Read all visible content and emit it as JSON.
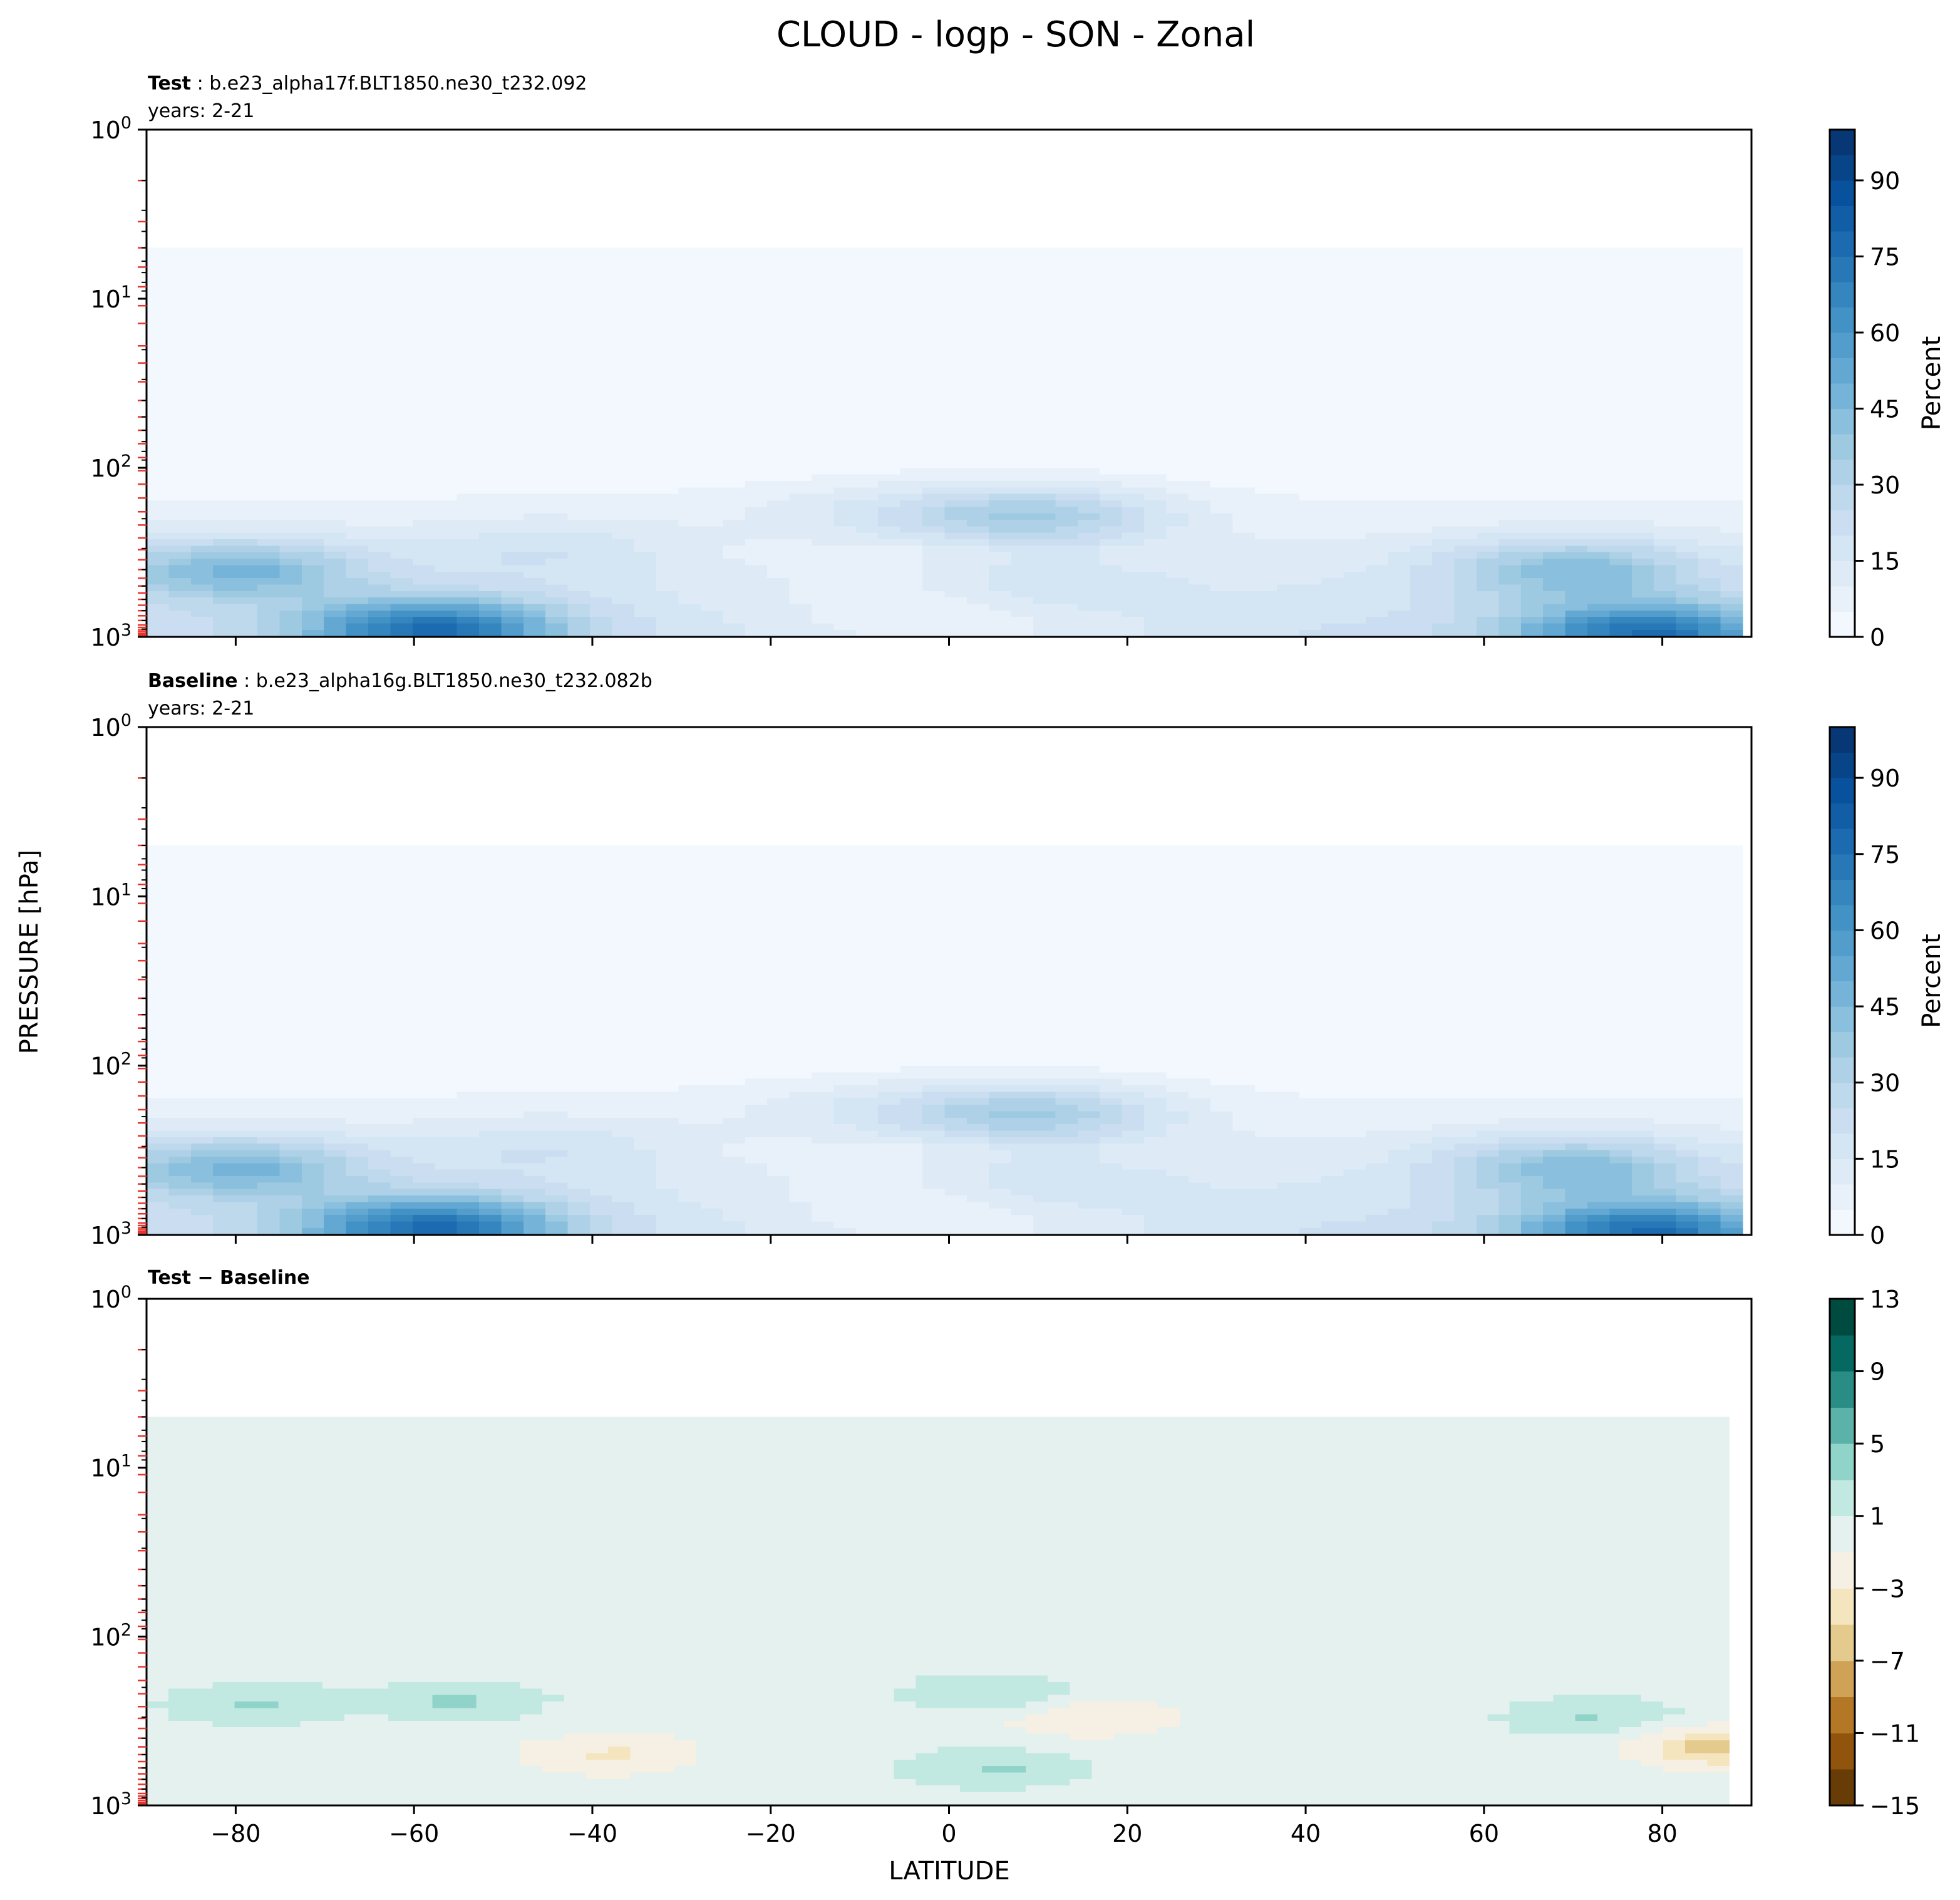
{
  "figure": {
    "title": "CLOUD - logp - SON - Zonal",
    "xlabel": "LATITUDE",
    "ylabel": "PRESSURE [hPa]"
  },
  "chart_data": [
    {
      "type": "heatmap",
      "panel": "test",
      "title_bold": "Test",
      "title_rest": " : b.e23_alpha17f.BLT1850.ne30_t232.092",
      "subtitle": "years: 2-21",
      "xlim": [
        -90,
        90
      ],
      "xticks": [
        -80,
        -60,
        -40,
        -20,
        0,
        20,
        40,
        60,
        80
      ],
      "ylim": [
        1000,
        1
      ],
      "yscale": "log",
      "yticks": [
        {
          "value": 1,
          "base": "10",
          "exp": "0"
        },
        {
          "value": 10,
          "base": "10",
          "exp": "1"
        },
        {
          "value": 100,
          "base": "10",
          "exp": "2"
        },
        {
          "value": 1000,
          "base": "10",
          "exp": "3"
        }
      ],
      "model_levels_hpa": [
        2,
        3.5,
        5,
        6.5,
        8.5,
        11,
        14,
        19,
        24,
        31,
        40,
        50,
        60,
        72,
        87,
        104,
        125,
        151,
        182,
        218,
        260,
        305,
        350,
        400,
        450,
        500,
        550,
        600,
        650,
        700,
        750,
        800,
        850,
        880,
        910,
        935,
        960,
        980,
        993
      ],
      "colorbar": {
        "label": "Percent",
        "min": 0,
        "max": 100,
        "step": 5,
        "ticks": [
          0,
          15,
          30,
          45,
          60,
          75,
          90
        ],
        "cmap": "Blues"
      },
      "data_top_hpa": 5,
      "features": [
        {
          "lat": -80,
          "p": 400,
          "value": 52
        },
        {
          "lat": -58,
          "p": 900,
          "value": 78
        },
        {
          "lat": -45,
          "p": 300,
          "value": 25
        },
        {
          "lat": 10,
          "p": 200,
          "value": 38
        },
        {
          "lat": 10,
          "p": 500,
          "value": 28
        },
        {
          "lat": 0,
          "p": 700,
          "value": 8
        },
        {
          "lat": 30,
          "p": 300,
          "value": 15
        },
        {
          "lat": 70,
          "p": 400,
          "value": 48
        },
        {
          "lat": 78,
          "p": 950,
          "value": 75
        }
      ]
    },
    {
      "type": "heatmap",
      "panel": "baseline",
      "title_bold": "Baseline",
      "title_rest": " : b.e23_alpha16g.BLT1850.ne30_t232.082b",
      "subtitle": "years: 2-21",
      "xlim": [
        -90,
        90
      ],
      "xticks": [
        -80,
        -60,
        -40,
        -20,
        0,
        20,
        40,
        60,
        80
      ],
      "ylim": [
        1000,
        1
      ],
      "yscale": "log",
      "yticks": [
        {
          "value": 1,
          "base": "10",
          "exp": "0"
        },
        {
          "value": 10,
          "base": "10",
          "exp": "1"
        },
        {
          "value": 100,
          "base": "10",
          "exp": "2"
        },
        {
          "value": 1000,
          "base": "10",
          "exp": "3"
        }
      ],
      "model_levels_hpa": [
        2,
        3.5,
        5,
        6.5,
        8.5,
        11,
        14,
        19,
        24,
        31,
        40,
        50,
        60,
        72,
        87,
        104,
        125,
        151,
        182,
        218,
        260,
        305,
        350,
        400,
        450,
        500,
        550,
        600,
        650,
        700,
        750,
        800,
        850,
        880,
        910,
        935,
        960,
        980,
        993
      ],
      "colorbar": {
        "label": "Percent",
        "min": 0,
        "max": 100,
        "step": 5,
        "ticks": [
          0,
          15,
          30,
          45,
          60,
          75,
          90
        ],
        "cmap": "Blues"
      },
      "data_top_hpa": 5,
      "features": [
        {
          "lat": -80,
          "p": 400,
          "value": 52
        },
        {
          "lat": -58,
          "p": 900,
          "value": 78
        },
        {
          "lat": -45,
          "p": 300,
          "value": 25
        },
        {
          "lat": 10,
          "p": 200,
          "value": 38
        },
        {
          "lat": 10,
          "p": 500,
          "value": 28
        },
        {
          "lat": 0,
          "p": 700,
          "value": 8
        },
        {
          "lat": 30,
          "p": 300,
          "value": 15
        },
        {
          "lat": 70,
          "p": 400,
          "value": 48
        },
        {
          "lat": 78,
          "p": 950,
          "value": 75
        }
      ]
    },
    {
      "type": "heatmap",
      "panel": "difference",
      "title_bold": "Test − Baseline",
      "title_rest": "",
      "subtitle": "",
      "xlim": [
        -90,
        90
      ],
      "xticks": [
        -80,
        -60,
        -40,
        -20,
        0,
        20,
        40,
        60,
        80
      ],
      "ylim": [
        1000,
        1
      ],
      "yscale": "log",
      "yticks": [
        {
          "value": 1,
          "base": "10",
          "exp": "0"
        },
        {
          "value": 10,
          "base": "10",
          "exp": "1"
        },
        {
          "value": 100,
          "base": "10",
          "exp": "2"
        },
        {
          "value": 1000,
          "base": "10",
          "exp": "3"
        }
      ],
      "model_levels_hpa": [
        2,
        3.5,
        5,
        6.5,
        8.5,
        11,
        14,
        19,
        24,
        31,
        40,
        50,
        60,
        72,
        87,
        104,
        125,
        151,
        182,
        218,
        260,
        305,
        350,
        400,
        450,
        500,
        550,
        600,
        650,
        700,
        750,
        800,
        850,
        880,
        910,
        935,
        960,
        980,
        993
      ],
      "colorbar": {
        "label": "",
        "min": -15,
        "max": 13,
        "step": 2,
        "ticks": [
          -15,
          -11,
          -7,
          -3,
          1,
          5,
          9,
          13
        ],
        "cmap": "BrBG"
      },
      "data_top_hpa": 5,
      "features": [
        {
          "lat": -78,
          "p": 250,
          "value": 2
        },
        {
          "lat": -55,
          "p": 240,
          "value": 2
        },
        {
          "lat": -38,
          "p": 500,
          "value": -2
        },
        {
          "lat": 5,
          "p": 220,
          "value": 2
        },
        {
          "lat": 5,
          "p": 600,
          "value": 2
        },
        {
          "lat": 15,
          "p": 300,
          "value": -2
        },
        {
          "lat": 72,
          "p": 300,
          "value": 2
        },
        {
          "lat": 88,
          "p": 450,
          "value": -4
        }
      ]
    }
  ]
}
